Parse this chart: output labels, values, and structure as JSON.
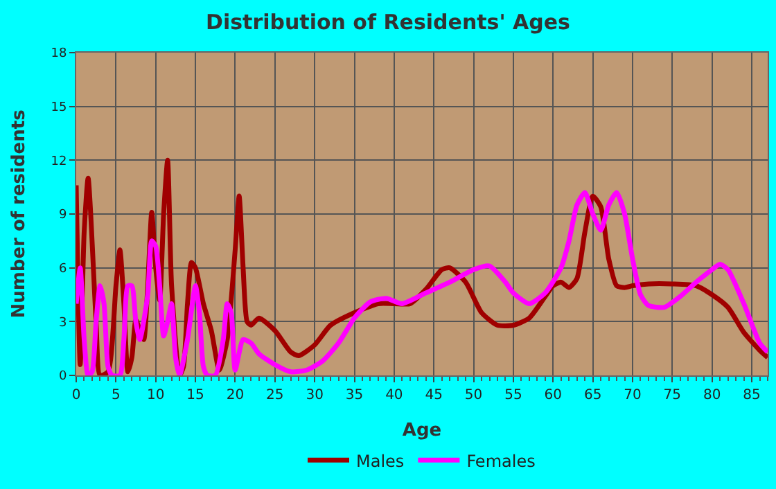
{
  "chart_data": {
    "type": "line",
    "title": "Distribution of Residents' Ages",
    "xlabel": "Age",
    "ylabel": "Number of residents",
    "xlim": [
      0,
      87
    ],
    "xticks": [
      0,
      5,
      10,
      15,
      20,
      25,
      30,
      35,
      40,
      45,
      50,
      55,
      60,
      65,
      70,
      75,
      80,
      85
    ],
    "ylim": [
      0,
      18
    ],
    "yticks": [
      0,
      3,
      6,
      9,
      12,
      15,
      18
    ],
    "grid": true,
    "legend": "bottom",
    "marker": "none",
    "line_style": "solid",
    "series": [
      {
        "name": "Males",
        "color": "#a00000",
        "x": [
          0,
          0.5,
          1,
          1.5,
          2.5,
          3,
          4,
          5,
          5.5,
          6,
          6.5,
          7,
          7.5,
          8,
          8.5,
          9,
          9.5,
          10,
          10.5,
          11,
          11.5,
          12,
          13,
          13.5,
          14,
          14.5,
          15,
          16,
          17,
          18,
          19,
          20,
          20.5,
          21,
          21.5,
          22,
          23,
          25,
          27,
          28,
          30,
          32,
          35,
          38,
          40,
          42,
          44,
          46,
          47,
          49,
          51,
          53,
          55,
          57,
          59,
          60,
          61,
          62,
          63,
          64,
          65,
          66,
          67,
          68,
          69,
          70,
          72,
          75,
          78,
          80,
          82,
          84,
          86,
          87
        ],
        "values": [
          10.6,
          0.6,
          8,
          11,
          3,
          0,
          0.2,
          5,
          7,
          4,
          0.2,
          1,
          3.1,
          2.5,
          2,
          5,
          9.1,
          6,
          4.2,
          9,
          12,
          5,
          0,
          0.5,
          4,
          6.3,
          6,
          4,
          2.5,
          0.3,
          2,
          7,
          10,
          6,
          3,
          2.8,
          3.2,
          2.5,
          1.3,
          1.1,
          1.7,
          2.8,
          3.5,
          4.0,
          4.0,
          4.0,
          4.8,
          5.9,
          6.0,
          5.2,
          3.5,
          2.8,
          2.8,
          3.2,
          4.4,
          5.0,
          5.2,
          4.9,
          5.4,
          8.0,
          10,
          9.4,
          6.5,
          5.0,
          4.9,
          5.0,
          5.1,
          5.1,
          5.0,
          4.5,
          3.8,
          2.4,
          1.4,
          1.0
        ]
      },
      {
        "name": "Females",
        "color": "#ff00ff",
        "x": [
          0,
          0.5,
          1,
          1.5,
          2,
          2.5,
          3,
          3.5,
          4,
          4.5,
          5.5,
          6,
          6.5,
          7,
          7.5,
          8,
          9,
          9.5,
          10,
          10.5,
          11,
          11.5,
          12,
          12.5,
          13,
          14,
          15,
          15.5,
          16,
          16.5,
          17.5,
          18.5,
          19,
          19.5,
          20,
          21,
          22,
          23,
          25,
          27,
          29,
          31,
          33,
          35,
          37,
          39,
          41,
          44,
          47,
          50,
          52,
          54,
          55,
          57,
          59,
          61,
          62,
          63,
          64,
          65,
          66,
          67,
          68,
          69,
          70,
          71,
          72,
          74,
          76,
          78,
          80,
          81,
          82,
          84,
          86,
          87
        ],
        "values": [
          4,
          6,
          2,
          0,
          0.2,
          3,
          5,
          4,
          0.5,
          0,
          0,
          2,
          5,
          5,
          3,
          2,
          4.5,
          7.5,
          7.2,
          5,
          2.2,
          3,
          4,
          1,
          0,
          2,
          5,
          3.5,
          0.5,
          0,
          0,
          2,
          4,
          3.5,
          0.3,
          2,
          1.8,
          1.2,
          0.6,
          0.2,
          0.3,
          0.8,
          1.8,
          3.2,
          4.1,
          4.3,
          4.0,
          4.6,
          5.2,
          5.9,
          6.1,
          5.2,
          4.6,
          4.0,
          4.6,
          6.0,
          7.5,
          9.5,
          10.2,
          9.0,
          8.1,
          9.5,
          10.2,
          9.0,
          6.5,
          4.5,
          3.9,
          3.8,
          4.4,
          5.2,
          5.9,
          6.2,
          5.9,
          4.0,
          1.8,
          1.3
        ]
      }
    ]
  }
}
